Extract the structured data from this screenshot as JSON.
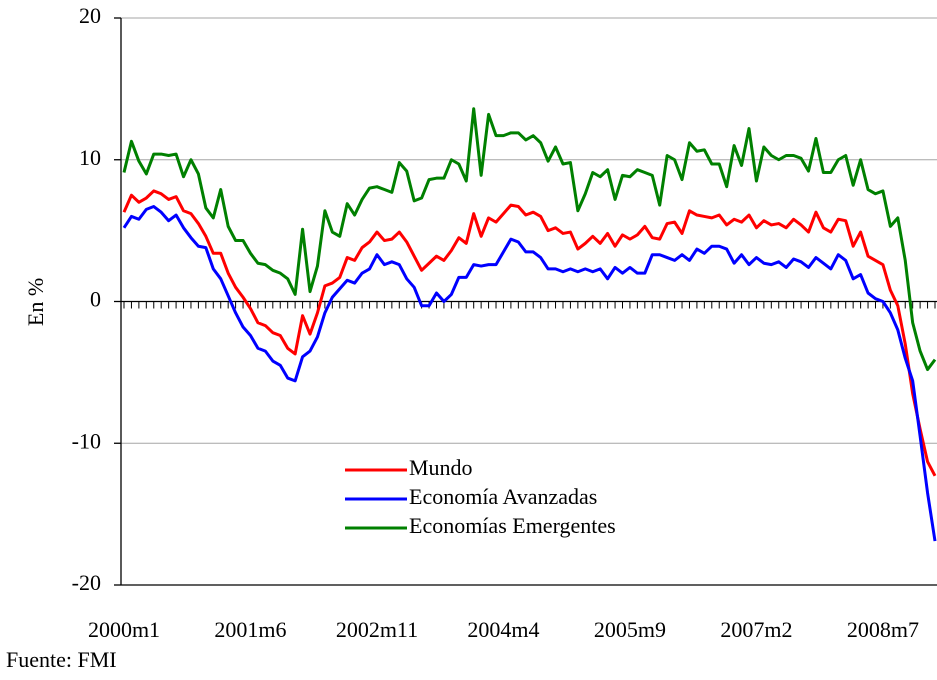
{
  "chart_data": {
    "type": "line",
    "y_label": "En %",
    "source": "Fuente: FMI",
    "categories": [
      "2000m1",
      null,
      null,
      null,
      null,
      null,
      null,
      null,
      null,
      null,
      null,
      null,
      null,
      null,
      null,
      null,
      null,
      "2001m6",
      null,
      null,
      null,
      null,
      null,
      null,
      null,
      null,
      null,
      null,
      null,
      null,
      null,
      null,
      null,
      null,
      "2002m11",
      null,
      null,
      null,
      null,
      null,
      null,
      null,
      null,
      null,
      null,
      null,
      null,
      null,
      null,
      null,
      null,
      "2004m4",
      null,
      null,
      null,
      null,
      null,
      null,
      null,
      null,
      null,
      null,
      null,
      null,
      null,
      null,
      null,
      null,
      "2005m9",
      null,
      null,
      null,
      null,
      null,
      null,
      null,
      null,
      null,
      null,
      null,
      null,
      null,
      null,
      null,
      null,
      "2007m2",
      null,
      null,
      null,
      null,
      null,
      null,
      null,
      null,
      null,
      null,
      null,
      null,
      null,
      null,
      null,
      null,
      "2008m7",
      null,
      null,
      null,
      null,
      null,
      null,
      null
    ],
    "series": [
      {
        "name": "Mundo",
        "color": "#ff0000",
        "values": [
          6.3,
          7.5,
          7.0,
          7.3,
          7.8,
          7.6,
          7.2,
          7.4,
          6.4,
          6.2,
          5.5,
          4.6,
          3.4,
          3.4,
          2.0,
          1.0,
          0.3,
          -0.5,
          -1.5,
          -1.7,
          -2.2,
          -2.4,
          -3.3,
          -3.7,
          -1.0,
          -2.3,
          -0.8,
          1.1,
          1.3,
          1.7,
          3.1,
          2.9,
          3.8,
          4.2,
          4.9,
          4.3,
          4.4,
          4.9,
          4.2,
          3.2,
          2.2,
          2.7,
          3.2,
          2.9,
          3.6,
          4.5,
          4.1,
          6.2,
          4.6,
          5.9,
          5.6,
          6.2,
          6.8,
          6.7,
          6.1,
          6.3,
          6.0,
          5.0,
          5.2,
          4.8,
          4.9,
          3.7,
          4.1,
          4.6,
          4.1,
          4.8,
          3.9,
          4.7,
          4.4,
          4.7,
          5.3,
          4.5,
          4.4,
          5.5,
          5.6,
          4.8,
          6.4,
          6.1,
          6.0,
          5.9,
          6.1,
          5.4,
          5.8,
          5.6,
          6.1,
          5.2,
          5.7,
          5.4,
          5.5,
          5.2,
          5.8,
          5.4,
          4.9,
          6.3,
          5.2,
          4.9,
          5.8,
          5.7,
          3.9,
          4.9,
          3.2,
          2.9,
          2.6,
          0.8,
          -0.3,
          -3.0,
          -6.5,
          -9.0,
          -11.3,
          -12.3
        ]
      },
      {
        "name": "Economía Avanzadas",
        "color": "#0000ff",
        "values": [
          5.2,
          6.0,
          5.8,
          6.5,
          6.7,
          6.3,
          5.7,
          6.1,
          5.2,
          4.5,
          3.9,
          3.8,
          2.3,
          1.6,
          0.4,
          -0.8,
          -1.8,
          -2.4,
          -3.3,
          -3.5,
          -4.2,
          -4.5,
          -5.4,
          -5.6,
          -3.9,
          -3.5,
          -2.5,
          -0.8,
          0.3,
          0.9,
          1.5,
          1.3,
          2.0,
          2.3,
          3.3,
          2.6,
          2.8,
          2.6,
          1.6,
          1.0,
          -0.3,
          -0.3,
          0.6,
          0.0,
          0.5,
          1.7,
          1.7,
          2.6,
          2.5,
          2.6,
          2.6,
          3.5,
          4.4,
          4.2,
          3.5,
          3.5,
          3.1,
          2.3,
          2.3,
          2.1,
          2.3,
          2.1,
          2.3,
          2.1,
          2.3,
          1.6,
          2.4,
          2.0,
          2.4,
          2.0,
          2.0,
          3.3,
          3.3,
          3.1,
          2.9,
          3.3,
          2.9,
          3.7,
          3.4,
          3.9,
          3.9,
          3.7,
          2.7,
          3.3,
          2.6,
          3.1,
          2.7,
          2.6,
          2.8,
          2.4,
          3.0,
          2.8,
          2.4,
          3.1,
          2.7,
          2.3,
          3.3,
          2.9,
          1.6,
          1.9,
          0.6,
          0.2,
          0.0,
          -0.8,
          -2.0,
          -4.0,
          -5.6,
          -9.5,
          -13.5,
          -16.9
        ]
      },
      {
        "name": "Economías Emergentes",
        "color": "#008000",
        "values": [
          9.1,
          11.3,
          9.9,
          9.0,
          10.4,
          10.4,
          10.3,
          10.4,
          8.8,
          10.0,
          9.0,
          6.6,
          5.9,
          7.9,
          5.3,
          4.3,
          4.3,
          3.4,
          2.7,
          2.6,
          2.2,
          2.0,
          1.6,
          0.5,
          5.1,
          0.7,
          2.5,
          6.4,
          4.9,
          4.6,
          6.9,
          6.1,
          7.2,
          8.0,
          8.1,
          7.9,
          7.7,
          9.8,
          9.2,
          7.1,
          7.3,
          8.6,
          8.7,
          8.7,
          10.0,
          9.7,
          8.5,
          13.6,
          8.9,
          13.2,
          11.7,
          11.7,
          11.9,
          11.9,
          11.4,
          11.7,
          11.2,
          9.9,
          10.9,
          9.7,
          9.8,
          6.4,
          7.6,
          9.1,
          8.8,
          9.3,
          7.2,
          8.9,
          8.8,
          9.3,
          9.1,
          8.9,
          6.8,
          10.3,
          10.0,
          8.6,
          11.2,
          10.6,
          10.7,
          9.7,
          9.7,
          8.1,
          11.0,
          9.6,
          12.2,
          8.5,
          10.9,
          10.3,
          10.0,
          10.3,
          10.3,
          10.1,
          9.2,
          11.5,
          9.1,
          9.1,
          10.0,
          10.3,
          8.2,
          10.0,
          7.9,
          7.6,
          7.8,
          5.3,
          5.9,
          2.9,
          -1.5,
          -3.5,
          -4.8,
          -4.1
        ]
      }
    ],
    "ylim": [
      -20,
      20
    ],
    "yticks": [
      -20,
      -10,
      0,
      10,
      20
    ],
    "grid": true,
    "legend": "lower center"
  }
}
